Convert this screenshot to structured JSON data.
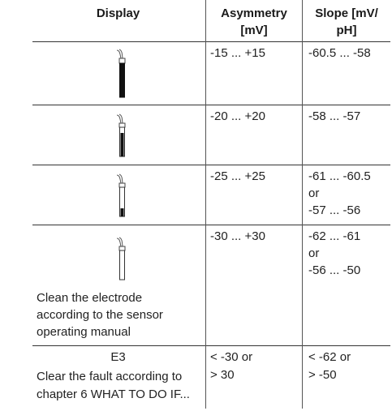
{
  "table": {
    "headers": {
      "display": "Display",
      "asymmetry": "Asymmetry\n[mV]",
      "slope": "Slope [mV/\npH]"
    },
    "rows": [
      {
        "icon": "electrode-full-icon",
        "asymmetry": "-15 ... +15",
        "slope": "-60.5 ... -58"
      },
      {
        "icon": "electrode-three-quarter-icon",
        "asymmetry": "-20 ... +20",
        "slope": "-58 ... -57"
      },
      {
        "icon": "electrode-quarter-icon",
        "asymmetry": "-25 ... +25",
        "slope": "-61 ... -60.5\nor\n-57 ... -56"
      },
      {
        "icon": "electrode-empty-icon",
        "display_text": "Clean the electrode\naccording to the sensor\noperating manual",
        "asymmetry": "-30 ... +30",
        "slope": "-62 ... -61\nor\n-56 ... -50"
      },
      {
        "display_code": "E3",
        "display_text": "Clear the fault according to\nchapter 6 WHAT TO DO IF...",
        "asymmetry": "< -30 or\n> 30",
        "slope": "< -62 or\n> -50"
      }
    ]
  }
}
